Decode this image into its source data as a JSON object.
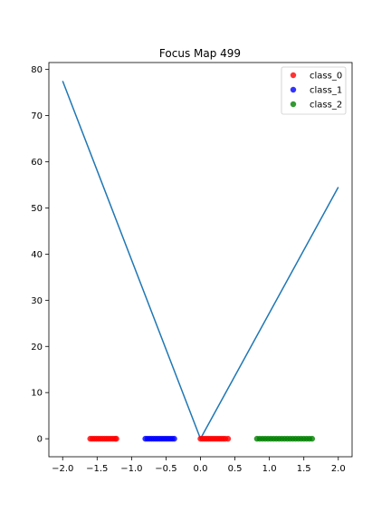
{
  "chart_data": {
    "type": "scatter",
    "title": "Focus Map 499",
    "xlabel": "",
    "ylabel": "",
    "xlim": [
      -2.2,
      2.2
    ],
    "ylim": [
      -3.9,
      81.5
    ],
    "x_ticks": [
      -2.0,
      -1.5,
      -1.0,
      -0.5,
      0.0,
      0.5,
      1.0,
      1.5,
      2.0
    ],
    "x_tick_labels": [
      "−2.0",
      "−1.5",
      "−1.0",
      "−0.5",
      "0.0",
      "0.5",
      "1.0",
      "1.5",
      "2.0"
    ],
    "y_ticks": [
      0,
      10,
      20,
      30,
      40,
      50,
      60,
      70,
      80
    ],
    "y_tick_labels": [
      "0",
      "10",
      "20",
      "30",
      "40",
      "50",
      "60",
      "70",
      "80"
    ],
    "grid": false,
    "legend_position": "upper-right",
    "line": {
      "color": "#1f77b4",
      "x": [
        -2.0,
        0.0,
        2.0
      ],
      "y": [
        77.5,
        0.0,
        54.5
      ]
    },
    "series": [
      {
        "name": "class_0",
        "color": "#ff0000",
        "x": [
          -1.6,
          -1.57,
          -1.54,
          -1.51,
          -1.48,
          -1.45,
          -1.42,
          -1.39,
          -1.36,
          -1.33,
          -1.3,
          -1.27,
          -1.24,
          -1.22,
          0.0,
          0.03,
          0.06,
          0.09,
          0.12,
          0.15,
          0.18,
          0.21,
          0.24,
          0.27,
          0.3,
          0.33,
          0.36,
          0.4
        ],
        "y": [
          0,
          0,
          0,
          0,
          0,
          0,
          0,
          0,
          0,
          0,
          0,
          0,
          0,
          0,
          0,
          0,
          0,
          0,
          0,
          0,
          0,
          0,
          0,
          0,
          0,
          0,
          0,
          0
        ]
      },
      {
        "name": "class_1",
        "color": "#0000ff",
        "x": [
          -0.8,
          -0.77,
          -0.74,
          -0.71,
          -0.68,
          -0.65,
          -0.62,
          -0.59,
          -0.56,
          -0.53,
          -0.5,
          -0.47,
          -0.44,
          -0.41,
          -0.38
        ],
        "y": [
          0,
          0,
          0,
          0,
          0,
          0,
          0,
          0,
          0,
          0,
          0,
          0,
          0,
          0,
          0
        ]
      },
      {
        "name": "class_2",
        "color": "#008000",
        "x": [
          0.82,
          0.86,
          0.9,
          0.94,
          0.98,
          1.02,
          1.06,
          1.1,
          1.14,
          1.18,
          1.22,
          1.26,
          1.3,
          1.34,
          1.38,
          1.42,
          1.46,
          1.5,
          1.54,
          1.58,
          1.62
        ],
        "y": [
          0,
          0,
          0,
          0,
          0,
          0,
          0,
          0,
          0,
          0,
          0,
          0,
          0,
          0,
          0,
          0,
          0,
          0,
          0,
          0,
          0
        ]
      }
    ]
  }
}
